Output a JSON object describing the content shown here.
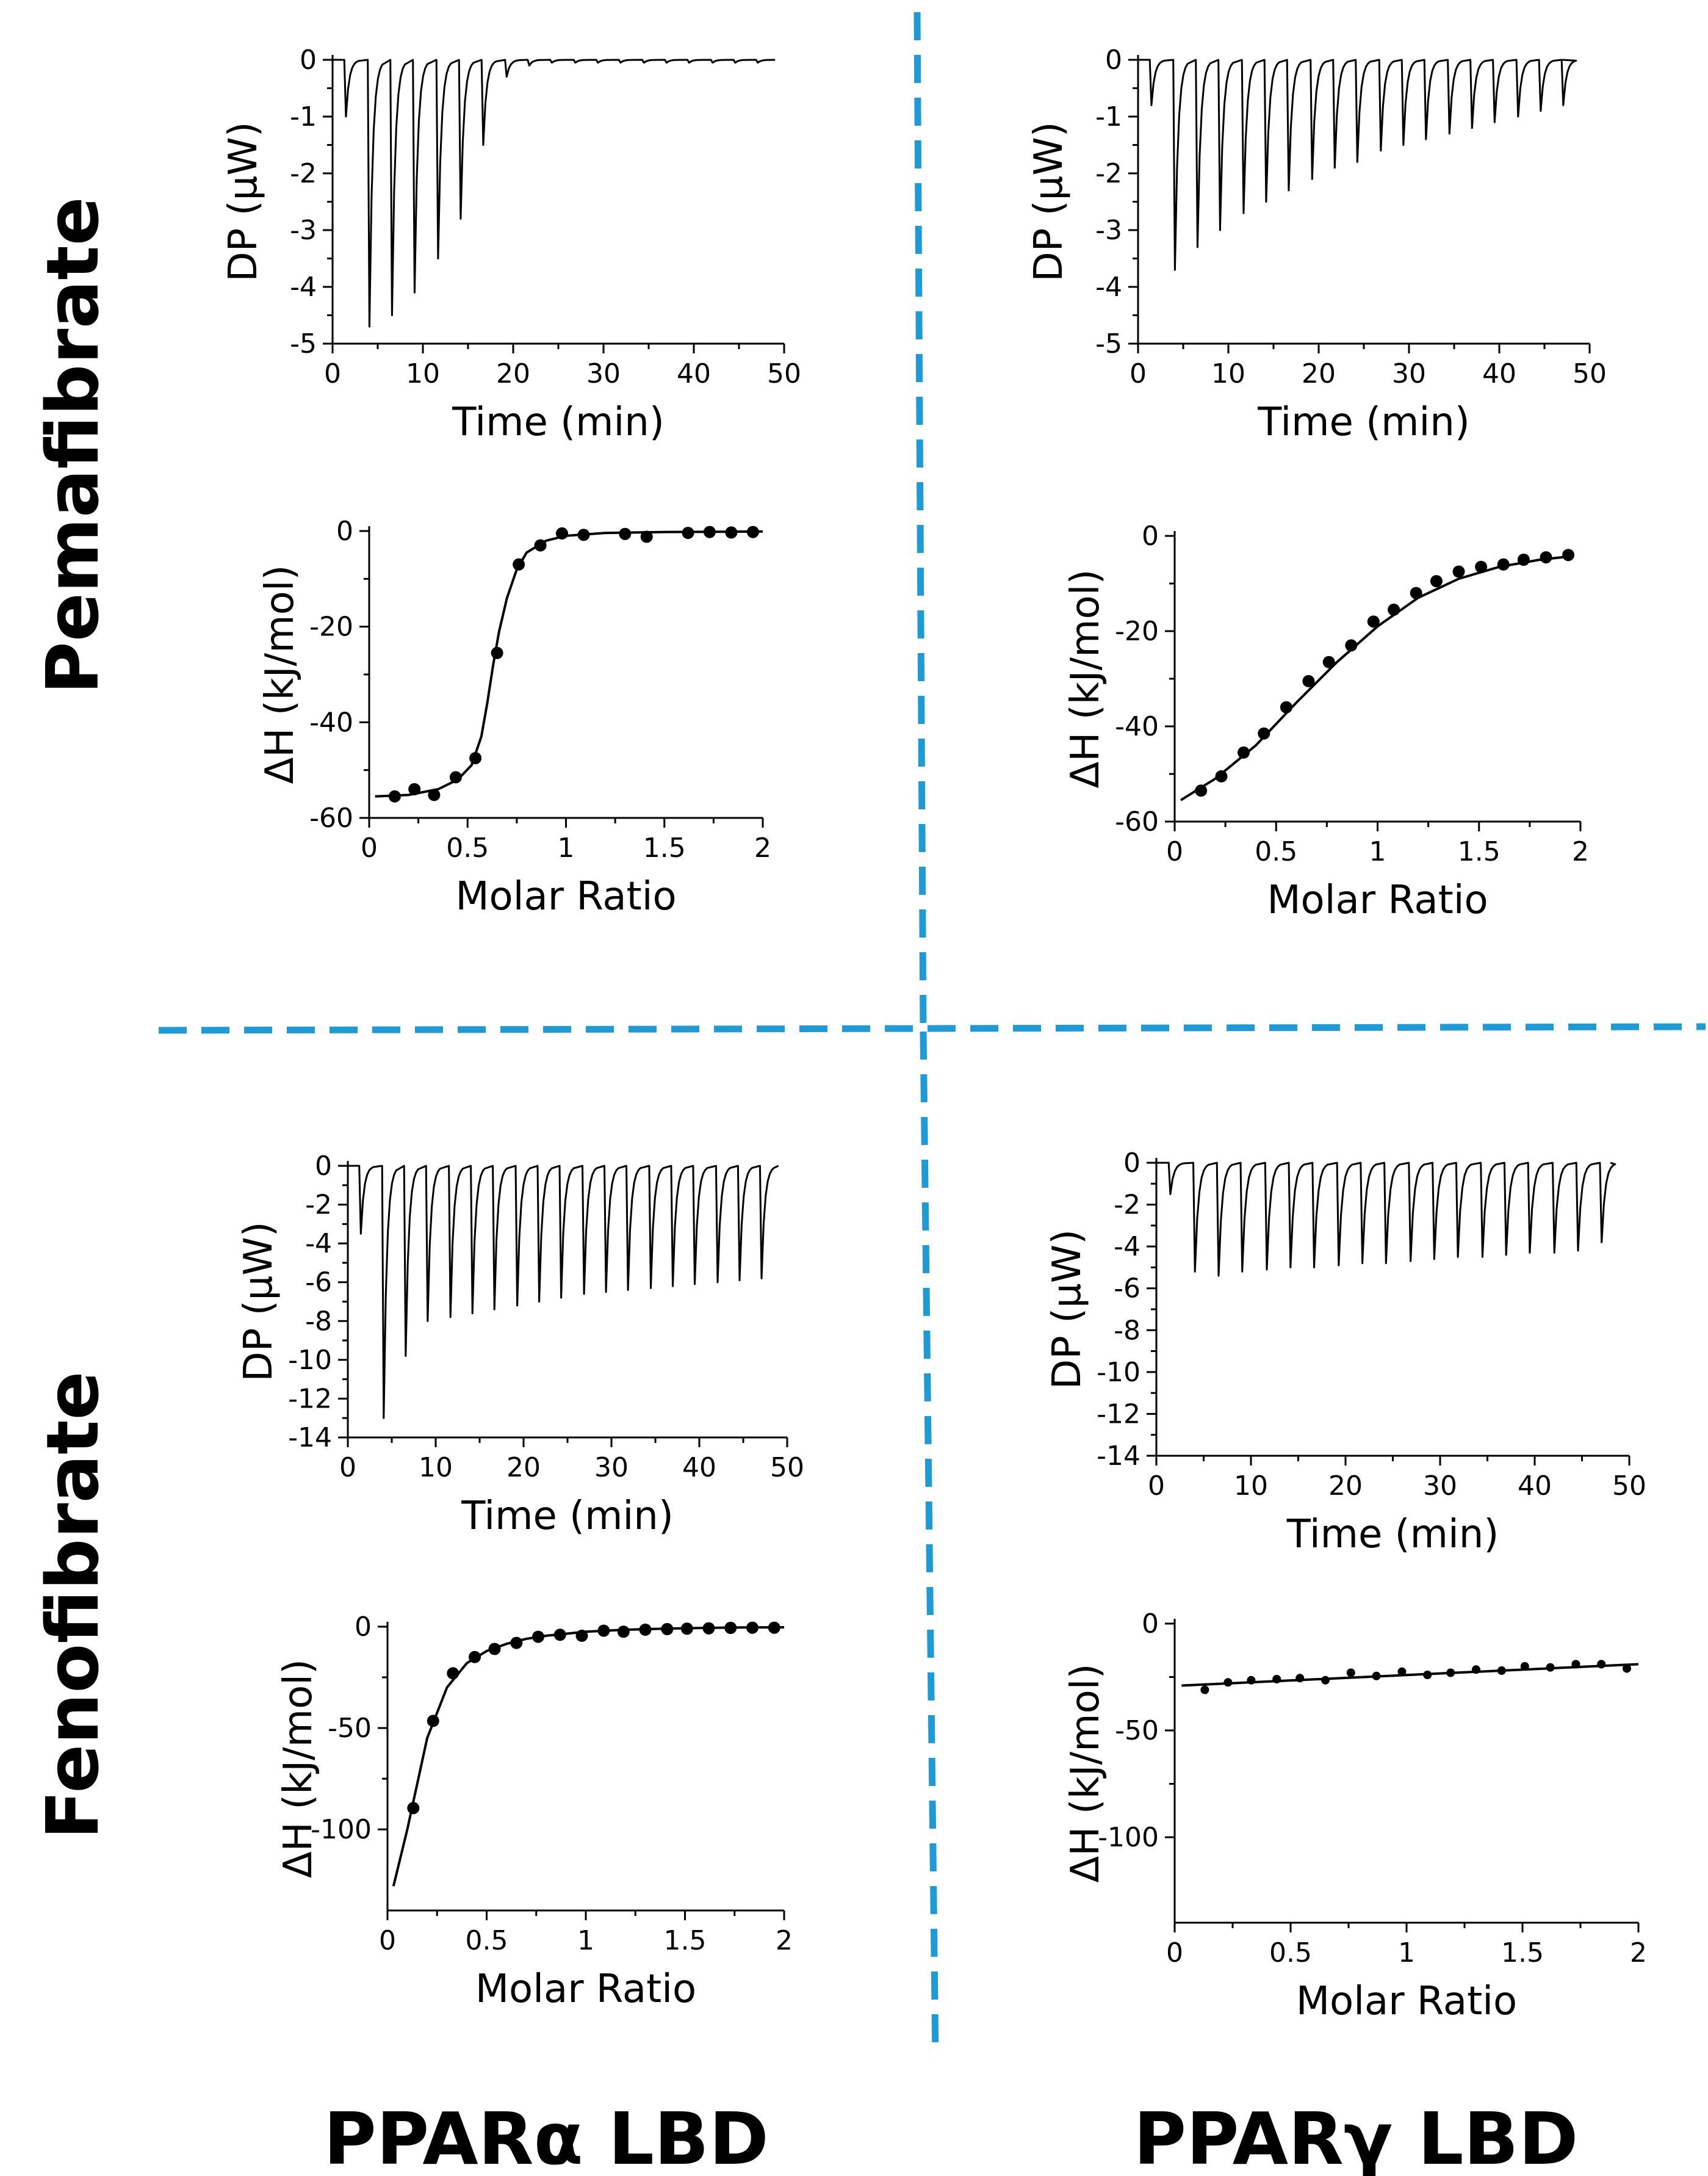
{
  "figure": {
    "row_labels": [
      "Pemafibrate",
      "Fenofibrate"
    ],
    "column_labels": [
      "PPARα LBD",
      "PPARγ LBD"
    ],
    "colors": {
      "divider": "#1e9ad6",
      "ink": "#000000"
    }
  },
  "chart_data": [
    {
      "id": "pema-alpha-thermogram",
      "type": "line",
      "title": "",
      "xlabel": "Time (min)",
      "ylabel": "DP (μW)",
      "xlim": [
        0,
        50
      ],
      "ylim": [
        -5,
        0
      ],
      "xticks": [
        0,
        10,
        20,
        30,
        40,
        50
      ],
      "yticks": [
        0,
        -1,
        -2,
        -3,
        -4,
        -5
      ],
      "injection_times": [
        1.3,
        3.9,
        6.4,
        8.9,
        11.5,
        14.0,
        16.5,
        19.1,
        21.6,
        24.1,
        26.7,
        29.2,
        31.7,
        34.3,
        36.8,
        39.3,
        41.9,
        44.4,
        46.9
      ],
      "peak_values": [
        -1.0,
        -4.7,
        -4.5,
        -4.1,
        -3.5,
        -2.8,
        -1.5,
        -0.3,
        -0.1,
        -0.05,
        -0.05,
        -0.05,
        -0.05,
        -0.05,
        -0.05,
        -0.05,
        -0.05,
        -0.05,
        -0.05
      ],
      "end_time": 49
    },
    {
      "id": "pema-gamma-thermogram",
      "type": "line",
      "title": "",
      "xlabel": "Time (min)",
      "ylabel": "DP (μW)",
      "xlim": [
        0,
        50
      ],
      "ylim": [
        -5,
        0
      ],
      "xticks": [
        0,
        10,
        20,
        30,
        40,
        50
      ],
      "yticks": [
        0,
        -1,
        -2,
        -3,
        -4,
        -5
      ],
      "injection_times": [
        1.3,
        3.9,
        6.4,
        8.9,
        11.5,
        14.0,
        16.5,
        19.1,
        21.6,
        24.1,
        26.7,
        29.2,
        31.7,
        34.3,
        36.8,
        39.3,
        41.9,
        44.4,
        46.9
      ],
      "peak_values": [
        -0.8,
        -3.7,
        -3.3,
        -3.0,
        -2.7,
        -2.5,
        -2.3,
        -2.1,
        -1.9,
        -1.8,
        -1.6,
        -1.5,
        -1.4,
        -1.3,
        -1.2,
        -1.1,
        -1.0,
        -0.9,
        -0.8
      ],
      "end_time": 47
    },
    {
      "id": "pema-alpha-isotherm",
      "type": "scatter",
      "title": "",
      "xlabel": "Molar Ratio",
      "ylabel": "ΔH (kJ/mol)",
      "xlim": [
        0,
        2
      ],
      "ylim": [
        -60,
        0
      ],
      "xticks": [
        0,
        0.5,
        1,
        1.5,
        2
      ],
      "yticks": [
        0,
        -20,
        -40,
        -60
      ],
      "x": [
        0.13,
        0.23,
        0.33,
        0.44,
        0.54,
        0.65,
        0.76,
        0.87,
        0.98,
        1.09,
        1.3,
        1.41,
        1.62,
        1.73,
        1.84,
        1.95
      ],
      "y": [
        -55.5,
        -54,
        -55.2,
        -51.5,
        -47.5,
        -25.5,
        -7,
        -3,
        -0.5,
        -0.8,
        -0.6,
        -1.2,
        -0.4,
        -0.2,
        -0.3,
        -0.2
      ],
      "fit": {
        "x": [
          0.03,
          0.2,
          0.35,
          0.45,
          0.52,
          0.57,
          0.6,
          0.63,
          0.66,
          0.7,
          0.75,
          0.8,
          0.9,
          1.0,
          1.2,
          1.5,
          2.0
        ],
        "y": [
          -55.5,
          -55.2,
          -54,
          -52,
          -49,
          -43,
          -36,
          -28,
          -21,
          -14,
          -8,
          -4.5,
          -2,
          -1,
          -0.4,
          -0.2,
          -0.1
        ]
      }
    },
    {
      "id": "pema-gamma-isotherm",
      "type": "scatter",
      "title": "",
      "xlabel": "Molar Ratio",
      "ylabel": "ΔH (kJ/mol)",
      "xlim": [
        0,
        2
      ],
      "ylim": [
        -60,
        0
      ],
      "xticks": [
        0,
        0.5,
        1,
        1.5,
        2
      ],
      "yticks": [
        0,
        -20,
        -40,
        -60
      ],
      "x": [
        0.13,
        0.23,
        0.34,
        0.44,
        0.55,
        0.66,
        0.76,
        0.87,
        0.98,
        1.08,
        1.19,
        1.29,
        1.4,
        1.51,
        1.62,
        1.72,
        1.83,
        1.94
      ],
      "y": [
        -53.5,
        -50.5,
        -45.5,
        -41.5,
        -36,
        -30.5,
        -26.5,
        -23,
        -18,
        -15.5,
        -12,
        -9.5,
        -7.5,
        -6.5,
        -6,
        -5,
        -4.5,
        -4
      ],
      "fit": {
        "x": [
          0.03,
          0.2,
          0.4,
          0.6,
          0.8,
          1.0,
          1.2,
          1.4,
          1.6,
          1.8,
          1.95
        ],
        "y": [
          -55.5,
          -51,
          -44,
          -35,
          -26.5,
          -19,
          -13,
          -9,
          -6.5,
          -5,
          -4.3
        ]
      }
    },
    {
      "id": "feno-alpha-thermogram",
      "type": "line",
      "title": "",
      "xlabel": "Time (min)",
      "ylabel": "DP (μW)",
      "xlim": [
        0,
        50
      ],
      "ylim": [
        -14,
        0
      ],
      "xticks": [
        0,
        10,
        20,
        30,
        40,
        50
      ],
      "yticks": [
        0,
        -2,
        -4,
        -6,
        -8,
        -10,
        -12,
        -14
      ],
      "injection_times": [
        1.3,
        3.9,
        6.4,
        8.9,
        11.5,
        14.0,
        16.5,
        19.1,
        21.6,
        24.1,
        26.7,
        29.2,
        31.7,
        34.3,
        36.8,
        39.3,
        41.9,
        44.4,
        46.9
      ],
      "peak_values": [
        -3.5,
        -13.0,
        -9.8,
        -8.0,
        -7.8,
        -7.6,
        -7.4,
        -7.2,
        -7.0,
        -6.8,
        -6.6,
        -6.5,
        -6.4,
        -6.3,
        -6.2,
        -6.1,
        -6.0,
        -5.9,
        -5.8
      ],
      "end_time": 49
    },
    {
      "id": "feno-gamma-thermogram",
      "type": "line",
      "title": "",
      "xlabel": "Time (min)",
      "ylabel": "DP (μW)",
      "xlim": [
        0,
        50
      ],
      "ylim": [
        -14,
        0
      ],
      "xticks": [
        0,
        10,
        20,
        30,
        40,
        50
      ],
      "yticks": [
        0,
        -2,
        -4,
        -6,
        -8,
        -10,
        -12,
        -14
      ],
      "injection_times": [
        1.3,
        3.9,
        6.4,
        8.9,
        11.5,
        14.0,
        16.5,
        19.1,
        21.6,
        24.1,
        26.7,
        29.2,
        31.7,
        34.3,
        36.8,
        39.3,
        41.9,
        44.4,
        46.9
      ],
      "peak_values": [
        -1.5,
        -5.2,
        -5.4,
        -5.2,
        -5.1,
        -5.0,
        -5.0,
        -4.9,
        -4.8,
        -4.8,
        -4.7,
        -4.6,
        -4.5,
        -4.5,
        -4.4,
        -4.3,
        -4.3,
        -4.2,
        -3.8
      ],
      "end_time": 48
    },
    {
      "id": "feno-alpha-isotherm",
      "type": "scatter",
      "title": "",
      "xlabel": "Molar Ratio",
      "ylabel": "ΔH (kJ/mol)",
      "xlim": [
        0,
        2
      ],
      "ylim": [
        -140,
        0
      ],
      "xticks": [
        0,
        0.5,
        1,
        1.5,
        2
      ],
      "yticks": [
        0,
        -50,
        -100
      ],
      "x": [
        0.13,
        0.23,
        0.33,
        0.44,
        0.54,
        0.65,
        0.76,
        0.87,
        0.98,
        1.09,
        1.19,
        1.3,
        1.41,
        1.51,
        1.62,
        1.73,
        1.84,
        1.95
      ],
      "y": [
        -89.5,
        -46.5,
        -23,
        -15,
        -11,
        -8,
        -5,
        -4,
        -4.5,
        -2,
        -2.5,
        -1.5,
        -1.2,
        -1,
        -0.8,
        -0.6,
        -0.5,
        -0.5
      ],
      "fit": {
        "x": [
          0.03,
          0.1,
          0.2,
          0.3,
          0.4,
          0.5,
          0.6,
          0.7,
          0.8,
          0.9,
          1.0,
          1.2,
          1.4,
          1.6,
          1.8,
          2.0
        ],
        "y": [
          -128,
          -100,
          -55,
          -30,
          -18,
          -12,
          -8.5,
          -6,
          -4.5,
          -3.5,
          -2.5,
          -1.5,
          -1,
          -0.6,
          -0.4,
          -0.3
        ]
      }
    },
    {
      "id": "feno-gamma-isotherm",
      "type": "scatter",
      "title": "",
      "xlabel": "Molar Ratio",
      "ylabel": "ΔH (kJ/mol)",
      "xlim": [
        0,
        2
      ],
      "ylim": [
        -140,
        0
      ],
      "xticks": [
        0,
        0.5,
        1,
        1.5,
        2
      ],
      "yticks": [
        0,
        -50,
        -100
      ],
      "x": [
        0.13,
        0.23,
        0.33,
        0.44,
        0.54,
        0.65,
        0.76,
        0.87,
        0.98,
        1.09,
        1.19,
        1.3,
        1.41,
        1.51,
        1.62,
        1.73,
        1.84,
        1.95
      ],
      "y": [
        -31,
        -27.5,
        -26.5,
        -26,
        -25.5,
        -26.5,
        -23,
        -24.5,
        -22.5,
        -24,
        -23,
        -21.5,
        -22,
        -20,
        -20.5,
        -19,
        -19,
        -21
      ],
      "fit": {
        "x": [
          0.03,
          2.0
        ],
        "y": [
          -29,
          -19
        ]
      }
    }
  ]
}
